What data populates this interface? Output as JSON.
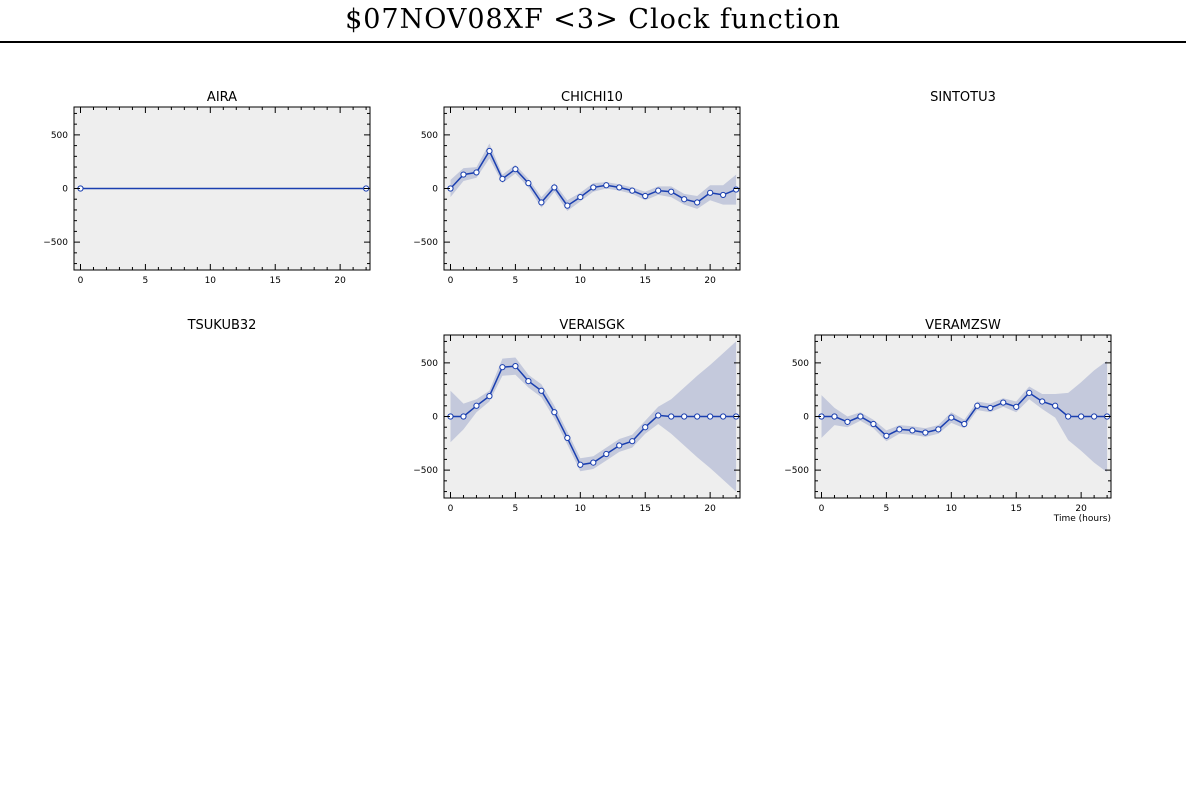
{
  "title": "$07NOV08XF <3>  Clock function",
  "colors": {
    "line": "#1a3fb0",
    "band": "#c4c9dc",
    "plot_bg": "#eeeeee"
  },
  "chart_data": [
    {
      "type": "line",
      "title": "AIRA",
      "has_plot": true,
      "x": [
        0,
        22
      ],
      "y": [
        0,
        0
      ],
      "err": [
        0,
        0
      ],
      "xlim": [
        -0.5,
        22.3
      ],
      "ylim": [
        -760,
        760
      ],
      "xticks": [
        0,
        5,
        10,
        15,
        20
      ],
      "yticks": [
        -500,
        0,
        500
      ],
      "xlabel": "",
      "grid": false
    },
    {
      "type": "line",
      "title": "CHICHI10",
      "has_plot": true,
      "x": [
        0,
        1,
        2,
        3,
        4,
        5,
        6,
        7,
        8,
        9,
        10,
        11,
        12,
        13,
        14,
        15,
        16,
        17,
        18,
        19,
        20,
        21,
        22
      ],
      "y": [
        0,
        130,
        150,
        350,
        90,
        180,
        50,
        -130,
        10,
        -160,
        -80,
        10,
        30,
        10,
        -20,
        -70,
        -20,
        -30,
        -100,
        -130,
        -40,
        -60,
        -10
      ],
      "err": [
        80,
        60,
        50,
        70,
        40,
        40,
        40,
        50,
        40,
        50,
        40,
        40,
        30,
        30,
        30,
        40,
        40,
        50,
        50,
        60,
        70,
        90,
        140
      ],
      "xlim": [
        -0.5,
        22.3
      ],
      "ylim": [
        -760,
        760
      ],
      "xticks": [
        0,
        5,
        10,
        15,
        20
      ],
      "yticks": [
        -500,
        0,
        500
      ],
      "xlabel": "",
      "grid": false
    },
    {
      "type": "line",
      "title": "SINTOTU3",
      "has_plot": false
    },
    {
      "type": "line",
      "title": "TSUKUB32",
      "has_plot": false
    },
    {
      "type": "line",
      "title": "VERAISGK",
      "has_plot": true,
      "x": [
        0,
        1,
        2,
        3,
        4,
        5,
        6,
        7,
        8,
        9,
        10,
        11,
        12,
        13,
        14,
        15,
        16,
        17,
        18,
        19,
        20,
        21,
        22
      ],
      "y": [
        0,
        0,
        100,
        190,
        460,
        470,
        330,
        240,
        40,
        -200,
        -450,
        -430,
        -350,
        -270,
        -230,
        -100,
        10,
        0,
        0,
        0,
        0,
        0,
        0
      ],
      "err": [
        240,
        120,
        60,
        50,
        80,
        80,
        60,
        60,
        60,
        60,
        60,
        60,
        60,
        60,
        60,
        60,
        80,
        160,
        270,
        380,
        480,
        590,
        700
      ],
      "xlim": [
        -0.5,
        22.3
      ],
      "ylim": [
        -760,
        760
      ],
      "xticks": [
        0,
        5,
        10,
        15,
        20
      ],
      "yticks": [
        -500,
        0,
        500
      ],
      "xlabel": "",
      "grid": false
    },
    {
      "type": "line",
      "title": "VERAMZSW",
      "has_plot": true,
      "x": [
        0,
        1,
        2,
        3,
        4,
        5,
        6,
        7,
        8,
        9,
        10,
        11,
        12,
        13,
        14,
        15,
        16,
        17,
        18,
        19,
        20,
        21,
        22
      ],
      "y": [
        0,
        0,
        -50,
        0,
        -70,
        -180,
        -120,
        -130,
        -150,
        -120,
        -10,
        -70,
        100,
        80,
        130,
        90,
        220,
        140,
        100,
        0,
        0,
        0,
        0
      ],
      "err": [
        200,
        80,
        50,
        40,
        40,
        50,
        40,
        40,
        40,
        40,
        50,
        40,
        40,
        40,
        40,
        50,
        60,
        70,
        110,
        220,
        320,
        430,
        520
      ],
      "xlim": [
        -0.5,
        22.3
      ],
      "ylim": [
        -760,
        760
      ],
      "xticks": [
        0,
        5,
        10,
        15,
        20
      ],
      "yticks": [
        -500,
        0,
        500
      ],
      "xlabel": "Time (hours)",
      "grid": false
    }
  ]
}
